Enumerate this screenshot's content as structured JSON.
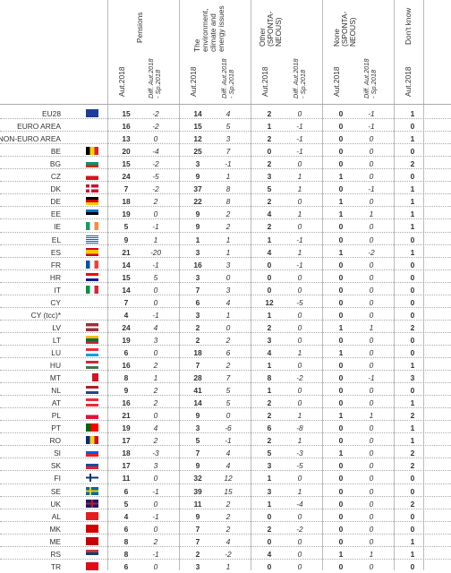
{
  "headers": {
    "pensions": "Pensions",
    "environment": "The\nenvironment,\nclimate and\nenergy issues",
    "other": "Other\n(SPONTA-\nNEOUS)",
    "none": "None\n(SPONTA-\nNEOUS)",
    "dont_know": "Don't know",
    "aut": "Aut.2018",
    "diff": "Diff. Aut.2018\n- Sp.2018"
  },
  "rows": [
    {
      "name": "EU28",
      "flag": "eu",
      "v": [
        "15",
        "-2",
        "14",
        "4",
        "2",
        "0",
        "0",
        "-1",
        "1"
      ]
    },
    {
      "name": "EURO AREA",
      "flag": "",
      "v": [
        "16",
        "-2",
        "15",
        "5",
        "1",
        "-1",
        "0",
        "-1",
        "0"
      ]
    },
    {
      "name": "NON-EURO AREA",
      "flag": "",
      "v": [
        "13",
        "0",
        "12",
        "3",
        "2",
        "-1",
        "0",
        "0",
        "1"
      ]
    },
    {
      "name": "BE",
      "flag": "be",
      "v": [
        "20",
        "-4",
        "25",
        "7",
        "0",
        "-1",
        "0",
        "0",
        "0"
      ]
    },
    {
      "name": "BG",
      "flag": "bg",
      "v": [
        "15",
        "-2",
        "3",
        "-1",
        "2",
        "0",
        "0",
        "0",
        "2"
      ]
    },
    {
      "name": "CZ",
      "flag": "cz",
      "v": [
        "24",
        "-5",
        "9",
        "1",
        "3",
        "1",
        "1",
        "0",
        "0"
      ]
    },
    {
      "name": "DK",
      "flag": "dk",
      "v": [
        "7",
        "-2",
        "37",
        "8",
        "5",
        "1",
        "0",
        "-1",
        "1"
      ]
    },
    {
      "name": "DE",
      "flag": "de",
      "v": [
        "18",
        "2",
        "22",
        "8",
        "2",
        "0",
        "1",
        "0",
        "1"
      ]
    },
    {
      "name": "EE",
      "flag": "ee",
      "v": [
        "19",
        "0",
        "9",
        "2",
        "4",
        "1",
        "1",
        "1",
        "1"
      ]
    },
    {
      "name": "IE",
      "flag": "ie",
      "v": [
        "5",
        "-1",
        "9",
        "2",
        "2",
        "0",
        "0",
        "0",
        "1"
      ]
    },
    {
      "name": "EL",
      "flag": "el",
      "v": [
        "9",
        "1",
        "1",
        "1",
        "1",
        "-1",
        "0",
        "0",
        "0"
      ]
    },
    {
      "name": "ES",
      "flag": "es",
      "v": [
        "21",
        "-20",
        "3",
        "1",
        "4",
        "1",
        "1",
        "-2",
        "1"
      ]
    },
    {
      "name": "FR",
      "flag": "fr",
      "v": [
        "14",
        "-1",
        "16",
        "3",
        "0",
        "-1",
        "0",
        "0",
        "0"
      ]
    },
    {
      "name": "HR",
      "flag": "hr",
      "v": [
        "15",
        "5",
        "3",
        "0",
        "0",
        "0",
        "0",
        "0",
        "0"
      ]
    },
    {
      "name": "IT",
      "flag": "it",
      "v": [
        "14",
        "0",
        "7",
        "3",
        "0",
        "0",
        "0",
        "0",
        "0"
      ]
    },
    {
      "name": "CY",
      "flag": "cy",
      "v": [
        "7",
        "0",
        "6",
        "4",
        "12",
        "-5",
        "0",
        "0",
        "0"
      ]
    },
    {
      "name": "CY (tcc)*",
      "flag": "",
      "v": [
        "4",
        "-1",
        "3",
        "1",
        "1",
        "0",
        "0",
        "0",
        "0"
      ]
    },
    {
      "name": "LV",
      "flag": "lv",
      "v": [
        "24",
        "4",
        "2",
        "0",
        "2",
        "0",
        "1",
        "1",
        "2"
      ]
    },
    {
      "name": "LT",
      "flag": "lt",
      "v": [
        "19",
        "3",
        "2",
        "2",
        "3",
        "0",
        "0",
        "0",
        "0"
      ]
    },
    {
      "name": "LU",
      "flag": "lu",
      "v": [
        "6",
        "0",
        "18",
        "6",
        "4",
        "1",
        "1",
        "0",
        "0"
      ]
    },
    {
      "name": "HU",
      "flag": "hu",
      "v": [
        "16",
        "2",
        "7",
        "2",
        "1",
        "0",
        "0",
        "0",
        "1"
      ]
    },
    {
      "name": "MT",
      "flag": "mt",
      "v": [
        "8",
        "1",
        "28",
        "7",
        "8",
        "-2",
        "0",
        "-1",
        "3"
      ]
    },
    {
      "name": "NL",
      "flag": "nl",
      "v": [
        "9",
        "2",
        "41",
        "5",
        "1",
        "0",
        "0",
        "0",
        "0"
      ]
    },
    {
      "name": "AT",
      "flag": "at",
      "v": [
        "16",
        "2",
        "14",
        "5",
        "2",
        "0",
        "0",
        "0",
        "1"
      ]
    },
    {
      "name": "PL",
      "flag": "pl",
      "v": [
        "21",
        "0",
        "9",
        "0",
        "2",
        "1",
        "1",
        "1",
        "2"
      ]
    },
    {
      "name": "PT",
      "flag": "pt",
      "v": [
        "19",
        "4",
        "3",
        "-6",
        "6",
        "-8",
        "0",
        "0",
        "1"
      ]
    },
    {
      "name": "RO",
      "flag": "ro",
      "v": [
        "17",
        "2",
        "5",
        "-1",
        "2",
        "1",
        "0",
        "0",
        "1"
      ]
    },
    {
      "name": "SI",
      "flag": "si",
      "v": [
        "18",
        "-3",
        "7",
        "4",
        "5",
        "-3",
        "1",
        "0",
        "2"
      ]
    },
    {
      "name": "SK",
      "flag": "sk",
      "v": [
        "17",
        "3",
        "9",
        "4",
        "3",
        "-5",
        "0",
        "0",
        "2"
      ]
    },
    {
      "name": "FI",
      "flag": "fi",
      "v": [
        "11",
        "0",
        "32",
        "12",
        "1",
        "0",
        "0",
        "0",
        "0"
      ]
    },
    {
      "name": "SE",
      "flag": "se",
      "v": [
        "6",
        "-1",
        "39",
        "15",
        "3",
        "1",
        "0",
        "0",
        "0"
      ]
    },
    {
      "name": "UK",
      "flag": "uk",
      "v": [
        "5",
        "0",
        "11",
        "2",
        "1",
        "-4",
        "0",
        "0",
        "2"
      ]
    },
    {
      "name": "AL",
      "flag": "al",
      "v": [
        "4",
        "-1",
        "9",
        "2",
        "0",
        "0",
        "0",
        "0",
        "0"
      ]
    },
    {
      "name": "MK",
      "flag": "mk",
      "v": [
        "6",
        "0",
        "7",
        "2",
        "2",
        "-2",
        "0",
        "0",
        "0"
      ]
    },
    {
      "name": "ME",
      "flag": "me",
      "v": [
        "8",
        "2",
        "7",
        "4",
        "0",
        "0",
        "0",
        "0",
        "1"
      ]
    },
    {
      "name": "RS",
      "flag": "rs",
      "v": [
        "8",
        "-1",
        "2",
        "-2",
        "4",
        "0",
        "1",
        "1",
        "1"
      ]
    },
    {
      "name": "TR",
      "flag": "tr",
      "v": [
        "6",
        "0",
        "3",
        "1",
        "0",
        "0",
        "0",
        "0",
        "0"
      ]
    }
  ],
  "colors": {
    "grid": "#bbbbbb",
    "text": "#333333"
  }
}
